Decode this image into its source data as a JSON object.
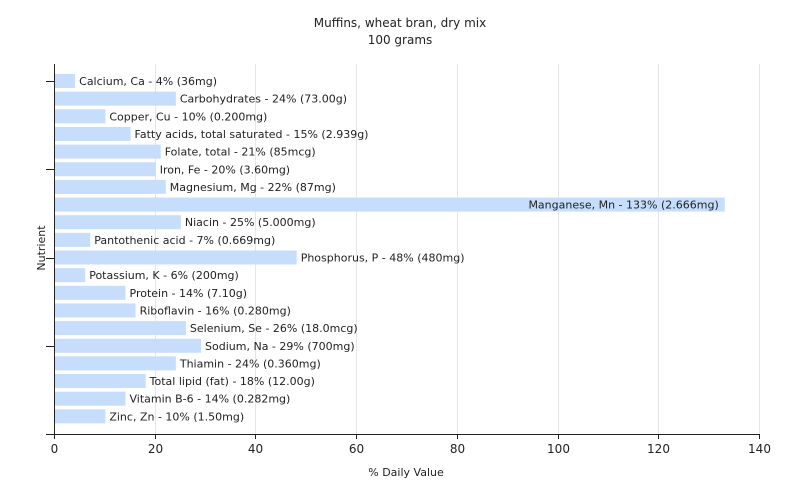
{
  "chart_data": {
    "type": "bar",
    "orientation": "horizontal",
    "title": "Muffins, wheat bran, dry mix",
    "subtitle": "100 grams",
    "xlabel": "% Daily Value",
    "ylabel": "Nutrient",
    "xlim": [
      0,
      140
    ],
    "xticks": [
      "0",
      "20",
      "40",
      "60",
      "80",
      "100",
      "120",
      "140"
    ],
    "grid": true,
    "bar_color": "#c6ddfb",
    "categories": [
      "Calcium, Ca",
      "Carbohydrates",
      "Copper, Cu",
      "Fatty acids, total saturated",
      "Folate, total",
      "Iron, Fe",
      "Magnesium, Mg",
      "Manganese, Mn",
      "Niacin",
      "Pantothenic acid",
      "Phosphorus, P",
      "Potassium, K",
      "Protein",
      "Riboflavin",
      "Selenium, Se",
      "Sodium, Na",
      "Thiamin",
      "Total lipid (fat)",
      "Vitamin B-6",
      "Zinc, Zn"
    ],
    "values": [
      4,
      24,
      10,
      15,
      21,
      20,
      22,
      133,
      25,
      7,
      48,
      6,
      14,
      16,
      26,
      29,
      24,
      18,
      14,
      10
    ],
    "labels": [
      "Calcium, Ca - 4% (36mg)",
      "Carbohydrates - 24% (73.00g)",
      "Copper, Cu - 10% (0.200mg)",
      "Fatty acids, total saturated - 15% (2.939g)",
      "Folate, total - 21% (85mcg)",
      "Iron, Fe - 20% (3.60mg)",
      "Magnesium, Mg - 22% (87mg)",
      "Manganese, Mn - 133% (2.666mg)",
      "Niacin - 25% (5.000mg)",
      "Pantothenic acid - 7% (0.669mg)",
      "Phosphorus, P - 48% (480mg)",
      "Potassium, K - 6% (200mg)",
      "Protein - 14% (7.10g)",
      "Riboflavin - 16% (0.280mg)",
      "Selenium, Se - 26% (18.0mcg)",
      "Sodium, Na - 29% (700mg)",
      "Thiamin - 24% (0.360mg)",
      "Total lipid (fat) - 18% (12.00g)",
      "Vitamin B-6 - 14% (0.282mg)",
      "Zinc, Zn - 10% (1.50mg)"
    ]
  }
}
